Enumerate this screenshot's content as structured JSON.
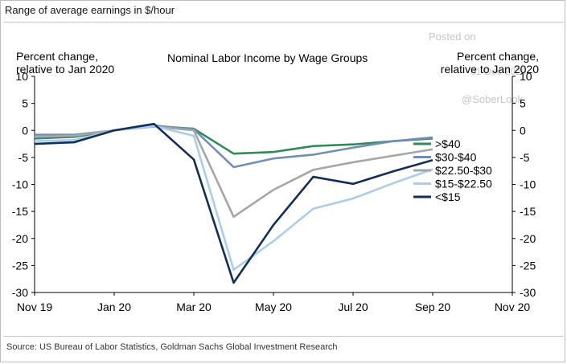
{
  "header": "Range of average earnings in $/hour",
  "title": "Nominal Labor Income by Wage Groups",
  "left_unit": [
    "Percent change,",
    "relative to Jan 2020"
  ],
  "right_unit": [
    "Percent change,",
    "relative to Jan 2020"
  ],
  "watermark": {
    "posted": "Posted on",
    "date": "01-Dec-2020",
    "handle": "@SoberLook"
  },
  "source": "Source: US Bureau of Labor Statistics, Goldman Sachs Global Investment Research",
  "chart_data": {
    "type": "line",
    "y_ticks": [
      10,
      5,
      0,
      -5,
      -10,
      -15,
      -20,
      -25,
      -30
    ],
    "ylim": [
      -30,
      10
    ],
    "x_ticks": [
      "Nov 19",
      "Jan 20",
      "Mar 20",
      "May 20",
      "Jul 20",
      "Sep 20",
      "Nov 20"
    ],
    "x": [
      "Nov 19",
      "Dec 19",
      "Jan 20",
      "Feb 20",
      "Mar 20",
      "Apr 20",
      "May 20",
      "Jun 20",
      "Jul 20",
      "Aug 20",
      "Sep 20"
    ],
    "series": [
      {
        "name": ">$40",
        "color": "#2e8b57",
        "values": [
          -1.5,
          -1.2,
          0,
          0.8,
          0.3,
          -4.3,
          -4,
          -2.9,
          -2.6,
          -2,
          -1.5
        ]
      },
      {
        "name": "$30-$40",
        "color": "#6f8fb8",
        "values": [
          -0.8,
          -0.8,
          0,
          0.9,
          0.2,
          -6.8,
          -5.2,
          -4.5,
          -3.2,
          -2,
          -1.3
        ]
      },
      {
        "name": "$22.50-$30",
        "color": "#a6a6a6",
        "values": [
          -1.2,
          -1.0,
          0,
          0.7,
          0,
          -16,
          -11,
          -7.3,
          -5.9,
          -4.7,
          -3.5
        ]
      },
      {
        "name": "$15-$22.50",
        "color": "#a9cdea",
        "values": [
          -2,
          -1.8,
          0,
          0.8,
          -1,
          -25.8,
          -20.5,
          -14.5,
          -12.6,
          -9.8,
          -7.2
        ]
      },
      {
        "name": "<$15",
        "color": "#112d5c",
        "values": [
          -2.5,
          -2.2,
          0,
          1.2,
          -5.4,
          -28.2,
          -17.5,
          -8.6,
          -9.9,
          -7.6,
          -5.5
        ]
      }
    ]
  }
}
